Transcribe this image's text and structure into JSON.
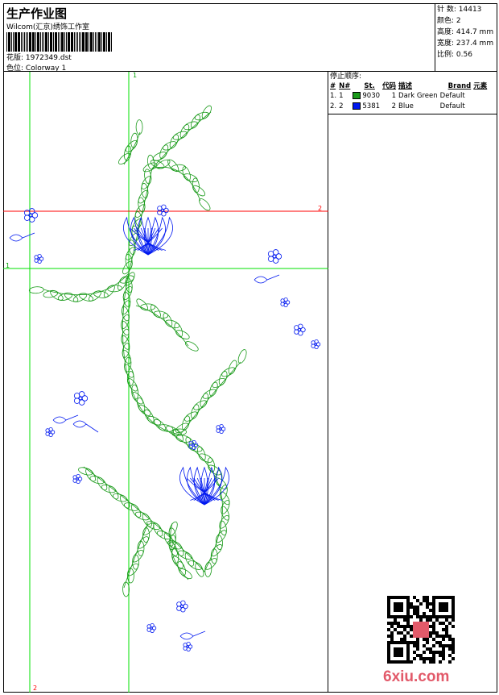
{
  "header": {
    "title": "生产作业图",
    "company": "Wilcom(汇京)绣饰工作室",
    "design_label": "花版: ",
    "design_file": "1972349.dst",
    "colorway_label": "色位: ",
    "colorway": "Colorway 1"
  },
  "info": [
    {
      "label": "针 数",
      "value": "14413"
    },
    {
      "label": "颜色",
      "value": "2"
    },
    {
      "label": "高度",
      "value": "414.7 mm"
    },
    {
      "label": "宽度",
      "value": "237.4 mm"
    },
    {
      "label": "比例",
      "value": "0.56"
    }
  ],
  "stop_sequence": {
    "title": "停止顺序:",
    "columns": [
      "#",
      "N#",
      "St.",
      "代码",
      "描述",
      "Brand",
      "元素"
    ],
    "rows": [
      {
        "idx": "1.",
        "n": "1",
        "color": "#1a9a1a",
        "st": "9030",
        "code": "1",
        "desc": "Dark Green",
        "brand": "Default"
      },
      {
        "idx": "2.",
        "n": "2",
        "color": "#0018f0",
        "st": "5381",
        "code": "2",
        "desc": "Blue",
        "brand": "Default"
      }
    ]
  },
  "guides": {
    "v1": "1",
    "h1": "1",
    "h2": "2",
    "v2": "2"
  },
  "colors": {
    "green_thread": "#1a9a1a",
    "blue_thread": "#0018f0",
    "guide_green": "#00e000",
    "guide_red": "#ff0000"
  },
  "watermark": "6xiu.com"
}
